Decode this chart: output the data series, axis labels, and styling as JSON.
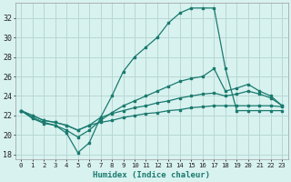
{
  "xlabel": "Humidex (Indice chaleur)",
  "bg_color": "#d8f2f0",
  "line_color": "#1a7a6e",
  "grid_color": "#b8d8d4",
  "xlim": [
    -0.5,
    23.5
  ],
  "ylim": [
    17.5,
    33.5
  ],
  "yticks": [
    18,
    20,
    22,
    24,
    26,
    28,
    30,
    32
  ],
  "xticks": [
    0,
    1,
    2,
    3,
    4,
    5,
    6,
    7,
    8,
    9,
    10,
    11,
    12,
    13,
    14,
    15,
    16,
    17,
    18,
    19,
    20,
    21,
    22,
    23
  ],
  "series": [
    {
      "x": [
        0,
        1,
        2,
        3,
        4,
        5,
        6,
        7,
        8,
        9,
        10,
        11,
        12,
        13,
        14,
        15,
        16,
        17,
        18,
        19,
        20,
        21,
        22,
        23
      ],
      "y": [
        22.5,
        21.7,
        21.2,
        21.0,
        20.2,
        18.2,
        19.2,
        21.8,
        24.0,
        26.5,
        28.0,
        29.0,
        30.0,
        31.5,
        32.5,
        33.0,
        33.0,
        33.0,
        26.8,
        22.5,
        22.5,
        22.5,
        22.5,
        22.5
      ]
    },
    {
      "x": [
        0,
        1,
        2,
        3,
        4,
        5,
        6,
        7,
        8,
        9,
        10,
        11,
        12,
        13,
        14,
        15,
        16,
        17,
        18,
        19,
        20,
        21,
        22,
        23
      ],
      "y": [
        22.5,
        21.8,
        21.3,
        21.0,
        20.5,
        19.8,
        20.5,
        21.5,
        22.3,
        23.0,
        23.5,
        24.0,
        24.5,
        25.0,
        25.5,
        25.8,
        26.0,
        26.8,
        24.5,
        24.8,
        25.2,
        24.5,
        24.0,
        23.0
      ]
    },
    {
      "x": [
        0,
        1,
        2,
        3,
        4,
        5,
        6,
        7,
        8,
        9,
        10,
        11,
        12,
        13,
        14,
        15,
        16,
        17,
        18,
        19,
        20,
        21,
        22,
        23
      ],
      "y": [
        22.5,
        22.0,
        21.5,
        21.3,
        21.0,
        20.5,
        21.0,
        21.8,
        22.2,
        22.5,
        22.8,
        23.0,
        23.3,
        23.5,
        23.8,
        24.0,
        24.2,
        24.3,
        24.0,
        24.2,
        24.5,
        24.2,
        23.8,
        23.0
      ]
    },
    {
      "x": [
        0,
        1,
        2,
        3,
        4,
        5,
        6,
        7,
        8,
        9,
        10,
        11,
        12,
        13,
        14,
        15,
        16,
        17,
        18,
        19,
        20,
        21,
        22,
        23
      ],
      "y": [
        22.5,
        22.0,
        21.5,
        21.3,
        21.0,
        20.5,
        21.0,
        21.3,
        21.5,
        21.8,
        22.0,
        22.2,
        22.3,
        22.5,
        22.6,
        22.8,
        22.9,
        23.0,
        23.0,
        23.0,
        23.0,
        23.0,
        23.0,
        22.9
      ]
    }
  ]
}
